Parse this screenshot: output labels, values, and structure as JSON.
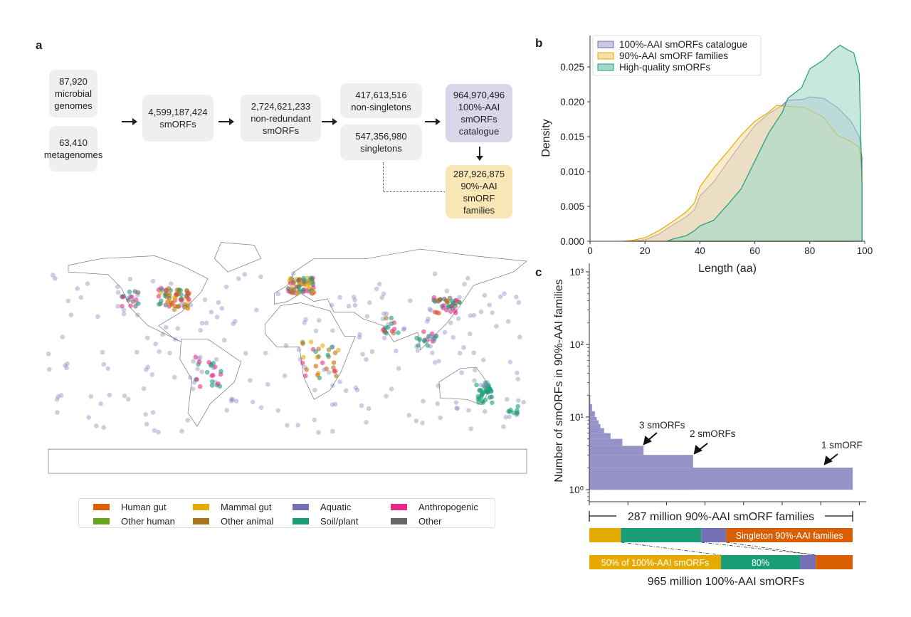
{
  "panels": {
    "a": "a",
    "b": "b",
    "c": "c"
  },
  "flowchart": {
    "boxes": [
      {
        "text": "87,920\nmicrobial\ngenomes"
      },
      {
        "text": "63,410\nmetagenomes"
      },
      {
        "text": "4,599,187,424\nsmORFs"
      },
      {
        "text": "2,724,621,233\nnon-redundant\nsmORFs"
      },
      {
        "text": "417,613,516\nnon-singletons"
      },
      {
        "text": "547,356,980\nsingletons"
      },
      {
        "text": "964,970,496\n100%-AAI\nsmORFs\ncatalogue"
      },
      {
        "text": "287,926,875\n90%-AAI\nsmORF\nfamilies"
      }
    ]
  },
  "map_legend": [
    {
      "label": "Human gut",
      "color": "#d95f02"
    },
    {
      "label": "Mammal gut",
      "color": "#e6ab02"
    },
    {
      "label": "Aquatic",
      "color": "#7570b3"
    },
    {
      "label": "Anthropogenic",
      "color": "#e7298a"
    },
    {
      "label": "Other human",
      "color": "#66a61e"
    },
    {
      "label": "Other animal",
      "color": "#a6761d"
    },
    {
      "label": "Soil/plant",
      "color": "#1b9e77"
    },
    {
      "label": "Other",
      "color": "#666666"
    }
  ],
  "chart_data": [
    {
      "type": "area",
      "xlabel": "Length (aa)",
      "ylabel": "Density",
      "xlim": [
        0,
        100
      ],
      "ylim": [
        0,
        0.029
      ],
      "xticks": [
        "0",
        "20",
        "40",
        "60",
        "80",
        "100"
      ],
      "yticks": [
        "0.000",
        "0.005",
        "0.010",
        "0.015",
        "0.020",
        "0.025"
      ],
      "legend": "top-left",
      "series": [
        {
          "name": "100%-AAI smORFs catalogue",
          "color": "#7570b3",
          "fill": "#c9c6e6",
          "points": [
            [
              15,
              0
            ],
            [
              20,
              0.0002
            ],
            [
              25,
              0.001
            ],
            [
              30,
              0.0023
            ],
            [
              35,
              0.0035
            ],
            [
              38,
              0.0045
            ],
            [
              40,
              0.0065
            ],
            [
              45,
              0.0085
            ],
            [
              50,
              0.0113
            ],
            [
              55,
              0.014
            ],
            [
              60,
              0.0166
            ],
            [
              65,
              0.0183
            ],
            [
              70,
              0.0195
            ],
            [
              72,
              0.0202
            ],
            [
              78,
              0.0204
            ],
            [
              80,
              0.0207
            ],
            [
              85,
              0.0205
            ],
            [
              90,
              0.0192
            ],
            [
              95,
              0.0172
            ],
            [
              98,
              0.015
            ],
            [
              99,
              0.012
            ],
            [
              99,
              0
            ]
          ]
        },
        {
          "name": "90%-AAI smORF families",
          "color": "#e6ab02",
          "fill": "#f5e0a8",
          "points": [
            [
              12,
              0
            ],
            [
              15,
              0.0001
            ],
            [
              20,
              0.0005
            ],
            [
              25,
              0.0015
            ],
            [
              30,
              0.0028
            ],
            [
              35,
              0.0042
            ],
            [
              38,
              0.0055
            ],
            [
              40,
              0.0078
            ],
            [
              45,
              0.0105
            ],
            [
              50,
              0.0128
            ],
            [
              55,
              0.0152
            ],
            [
              60,
              0.0172
            ],
            [
              65,
              0.0185
            ],
            [
              68,
              0.0195
            ],
            [
              70,
              0.0194
            ],
            [
              78,
              0.0192
            ],
            [
              85,
              0.0178
            ],
            [
              90,
              0.0152
            ],
            [
              95,
              0.0143
            ],
            [
              98,
              0.0135
            ],
            [
              99,
              0.01
            ],
            [
              99,
              0
            ]
          ]
        },
        {
          "name": "High-quality smORFs",
          "color": "#1b9e77",
          "fill": "#a3d9c8",
          "points": [
            [
              28,
              0
            ],
            [
              30,
              0.0003
            ],
            [
              35,
              0.0008
            ],
            [
              38,
              0.0015
            ],
            [
              40,
              0.0022
            ],
            [
              45,
              0.003
            ],
            [
              50,
              0.0052
            ],
            [
              55,
              0.0075
            ],
            [
              60,
              0.0115
            ],
            [
              65,
              0.0155
            ],
            [
              70,
              0.0185
            ],
            [
              72,
              0.0205
            ],
            [
              77,
              0.022
            ],
            [
              80,
              0.0247
            ],
            [
              85,
              0.026
            ],
            [
              88,
              0.0272
            ],
            [
              91,
              0.0281
            ],
            [
              94,
              0.0274
            ],
            [
              96,
              0.027
            ],
            [
              98,
              0.024
            ],
            [
              99,
              0.008
            ],
            [
              99,
              0
            ]
          ]
        }
      ]
    },
    {
      "type": "bar",
      "ylabel": "Number of smORFs in 90%-AAI families",
      "yscale": "log",
      "ylim": [
        0.68,
        1000
      ],
      "yticks": [
        "10⁰",
        "10¹",
        "10²",
        "10³"
      ],
      "xlim_million_families": [
        0,
        287
      ],
      "steps": [
        {
          "smorfs": 20,
          "families_cum_million": 1
        },
        {
          "smorfs": 15,
          "families_cum_million": 3
        },
        {
          "smorfs": 12,
          "families_cum_million": 6
        },
        {
          "smorfs": 10,
          "families_cum_million": 8
        },
        {
          "smorfs": 9,
          "families_cum_million": 10
        },
        {
          "smorfs": 8,
          "families_cum_million": 12
        },
        {
          "smorfs": 7,
          "families_cum_million": 16
        },
        {
          "smorfs": 6,
          "families_cum_million": 23
        },
        {
          "smorfs": 5,
          "families_cum_million": 36
        },
        {
          "smorfs": 4,
          "families_cum_million": 59
        },
        {
          "smorfs": 3,
          "families_cum_million": 113
        },
        {
          "smorfs": 2,
          "families_cum_million": 287
        }
      ],
      "bar_color": "#9691c6",
      "annotations": [
        "3 smORFs",
        "2 smORFs",
        "1 smORF"
      ],
      "span_label": "287 million 90%-AAI smORF families"
    },
    {
      "type": "bar",
      "stacked": true,
      "bars": [
        {
          "segments": [
            {
              "category": "Mammal gut",
              "percent": 12,
              "color": "#e6ab02",
              "label": ""
            },
            {
              "category": "Soil/plant",
              "percent": 30.5,
              "color": "#1b9e77",
              "label": ""
            },
            {
              "category": "Aquatic",
              "percent": 9.5,
              "color": "#7570b3",
              "label": ""
            },
            {
              "category": "Human gut",
              "percent": 48,
              "color": "#d95f02",
              "label": "Singleton 90%-AAI families"
            }
          ]
        },
        {
          "segments": [
            {
              "category": "Mammal gut",
              "percent": 50,
              "color": "#e6ab02",
              "label": "50% of 100%-AAI smORFs"
            },
            {
              "category": "Soil/plant",
              "percent": 30,
              "color": "#1b9e77",
              "label": "80%"
            },
            {
              "category": "Aquatic",
              "percent": 6,
              "color": "#7570b3",
              "label": ""
            },
            {
              "category": "Human gut",
              "percent": 14,
              "color": "#d95f02",
              "label": ""
            }
          ]
        }
      ],
      "xlabel": "965 million 100%-AAI smORFs"
    }
  ]
}
